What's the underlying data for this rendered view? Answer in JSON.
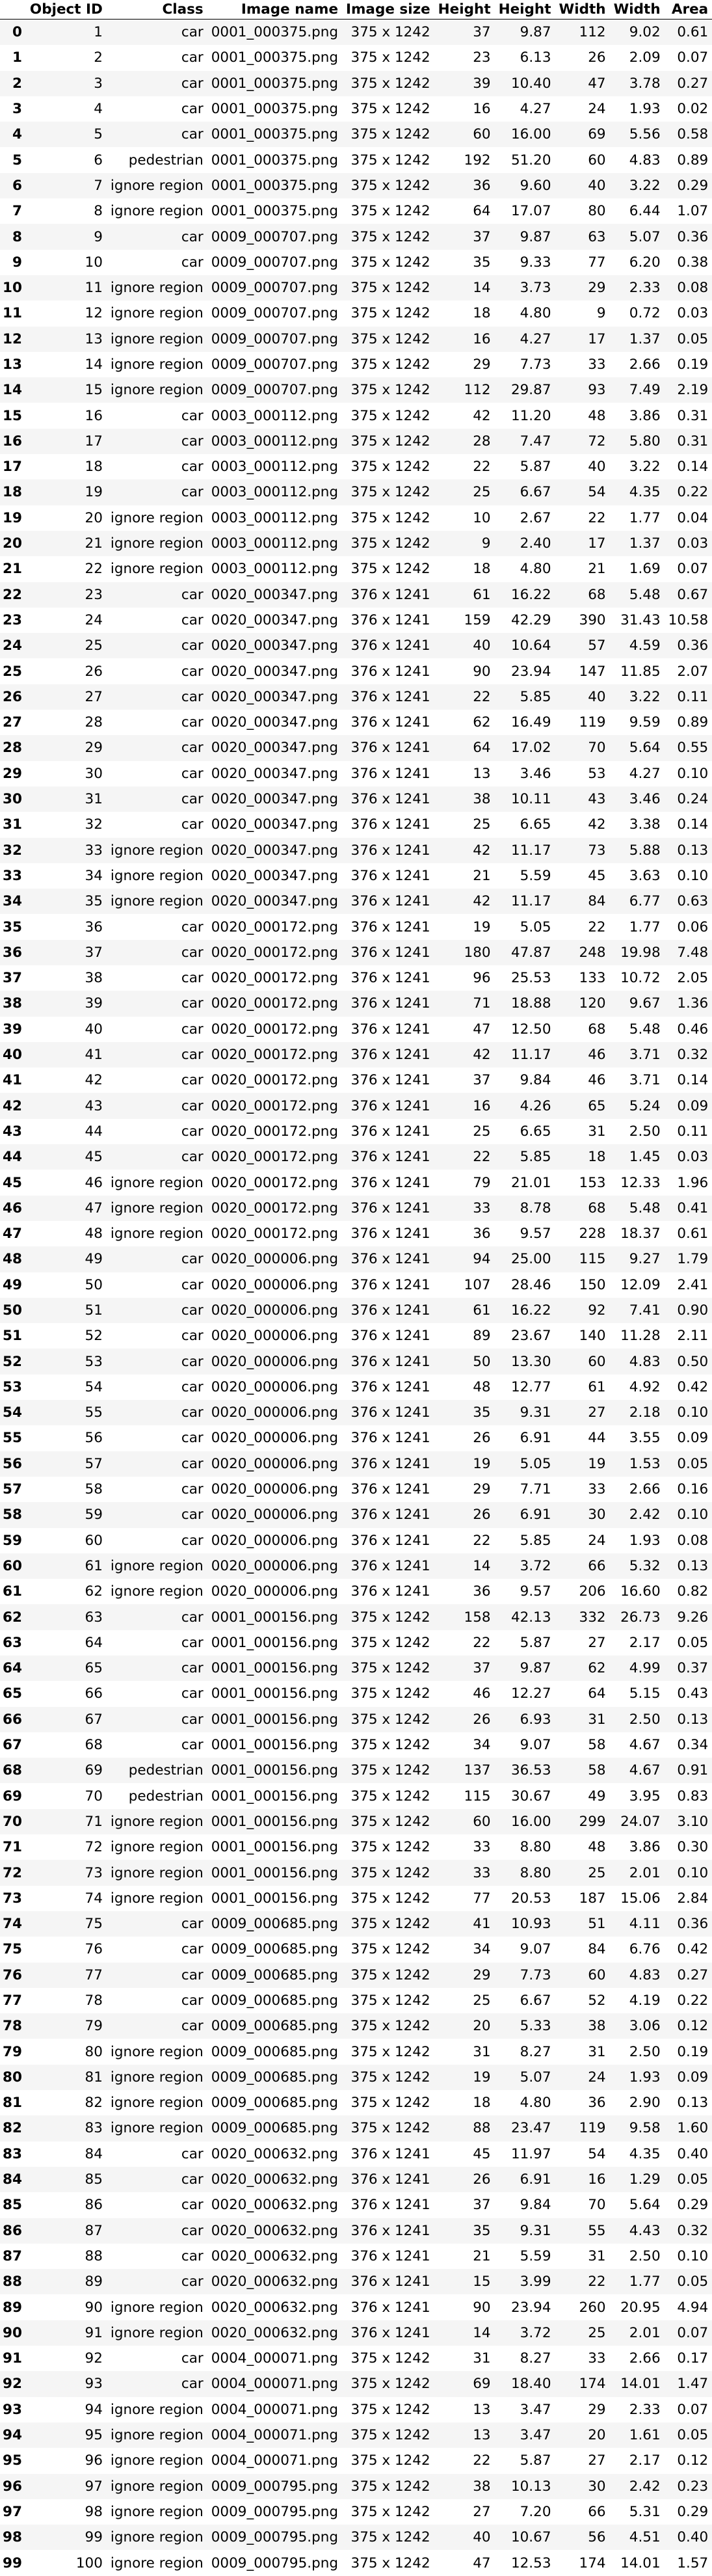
{
  "columns": [
    "",
    "Object ID",
    "Class",
    "Image name",
    "Image size",
    "Height",
    "Height",
    "Width",
    "Width",
    "Area"
  ],
  "rows": [
    [
      "0",
      "1",
      "car",
      "0001_000375.png",
      "375 x 1242",
      "37",
      "9.87",
      "112",
      "9.02",
      "0.61"
    ],
    [
      "1",
      "2",
      "car",
      "0001_000375.png",
      "375 x 1242",
      "23",
      "6.13",
      "26",
      "2.09",
      "0.07"
    ],
    [
      "2",
      "3",
      "car",
      "0001_000375.png",
      "375 x 1242",
      "39",
      "10.40",
      "47",
      "3.78",
      "0.27"
    ],
    [
      "3",
      "4",
      "car",
      "0001_000375.png",
      "375 x 1242",
      "16",
      "4.27",
      "24",
      "1.93",
      "0.02"
    ],
    [
      "4",
      "5",
      "car",
      "0001_000375.png",
      "375 x 1242",
      "60",
      "16.00",
      "69",
      "5.56",
      "0.58"
    ],
    [
      "5",
      "6",
      "pedestrian",
      "0001_000375.png",
      "375 x 1242",
      "192",
      "51.20",
      "60",
      "4.83",
      "0.89"
    ],
    [
      "6",
      "7",
      "ignore region",
      "0001_000375.png",
      "375 x 1242",
      "36",
      "9.60",
      "40",
      "3.22",
      "0.29"
    ],
    [
      "7",
      "8",
      "ignore region",
      "0001_000375.png",
      "375 x 1242",
      "64",
      "17.07",
      "80",
      "6.44",
      "1.07"
    ],
    [
      "8",
      "9",
      "car",
      "0009_000707.png",
      "375 x 1242",
      "37",
      "9.87",
      "63",
      "5.07",
      "0.36"
    ],
    [
      "9",
      "10",
      "car",
      "0009_000707.png",
      "375 x 1242",
      "35",
      "9.33",
      "77",
      "6.20",
      "0.38"
    ],
    [
      "10",
      "11",
      "ignore region",
      "0009_000707.png",
      "375 x 1242",
      "14",
      "3.73",
      "29",
      "2.33",
      "0.08"
    ],
    [
      "11",
      "12",
      "ignore region",
      "0009_000707.png",
      "375 x 1242",
      "18",
      "4.80",
      "9",
      "0.72",
      "0.03"
    ],
    [
      "12",
      "13",
      "ignore region",
      "0009_000707.png",
      "375 x 1242",
      "16",
      "4.27",
      "17",
      "1.37",
      "0.05"
    ],
    [
      "13",
      "14",
      "ignore region",
      "0009_000707.png",
      "375 x 1242",
      "29",
      "7.73",
      "33",
      "2.66",
      "0.19"
    ],
    [
      "14",
      "15",
      "ignore region",
      "0009_000707.png",
      "375 x 1242",
      "112",
      "29.87",
      "93",
      "7.49",
      "2.19"
    ],
    [
      "15",
      "16",
      "car",
      "0003_000112.png",
      "375 x 1242",
      "42",
      "11.20",
      "48",
      "3.86",
      "0.31"
    ],
    [
      "16",
      "17",
      "car",
      "0003_000112.png",
      "375 x 1242",
      "28",
      "7.47",
      "72",
      "5.80",
      "0.31"
    ],
    [
      "17",
      "18",
      "car",
      "0003_000112.png",
      "375 x 1242",
      "22",
      "5.87",
      "40",
      "3.22",
      "0.14"
    ],
    [
      "18",
      "19",
      "car",
      "0003_000112.png",
      "375 x 1242",
      "25",
      "6.67",
      "54",
      "4.35",
      "0.22"
    ],
    [
      "19",
      "20",
      "ignore region",
      "0003_000112.png",
      "375 x 1242",
      "10",
      "2.67",
      "22",
      "1.77",
      "0.04"
    ],
    [
      "20",
      "21",
      "ignore region",
      "0003_000112.png",
      "375 x 1242",
      "9",
      "2.40",
      "17",
      "1.37",
      "0.03"
    ],
    [
      "21",
      "22",
      "ignore region",
      "0003_000112.png",
      "375 x 1242",
      "18",
      "4.80",
      "21",
      "1.69",
      "0.07"
    ],
    [
      "22",
      "23",
      "car",
      "0020_000347.png",
      "376 x 1241",
      "61",
      "16.22",
      "68",
      "5.48",
      "0.67"
    ],
    [
      "23",
      "24",
      "car",
      "0020_000347.png",
      "376 x 1241",
      "159",
      "42.29",
      "390",
      "31.43",
      "10.58"
    ],
    [
      "24",
      "25",
      "car",
      "0020_000347.png",
      "376 x 1241",
      "40",
      "10.64",
      "57",
      "4.59",
      "0.36"
    ],
    [
      "25",
      "26",
      "car",
      "0020_000347.png",
      "376 x 1241",
      "90",
      "23.94",
      "147",
      "11.85",
      "2.07"
    ],
    [
      "26",
      "27",
      "car",
      "0020_000347.png",
      "376 x 1241",
      "22",
      "5.85",
      "40",
      "3.22",
      "0.11"
    ],
    [
      "27",
      "28",
      "car",
      "0020_000347.png",
      "376 x 1241",
      "62",
      "16.49",
      "119",
      "9.59",
      "0.89"
    ],
    [
      "28",
      "29",
      "car",
      "0020_000347.png",
      "376 x 1241",
      "64",
      "17.02",
      "70",
      "5.64",
      "0.55"
    ],
    [
      "29",
      "30",
      "car",
      "0020_000347.png",
      "376 x 1241",
      "13",
      "3.46",
      "53",
      "4.27",
      "0.10"
    ],
    [
      "30",
      "31",
      "car",
      "0020_000347.png",
      "376 x 1241",
      "38",
      "10.11",
      "43",
      "3.46",
      "0.24"
    ],
    [
      "31",
      "32",
      "car",
      "0020_000347.png",
      "376 x 1241",
      "25",
      "6.65",
      "42",
      "3.38",
      "0.14"
    ],
    [
      "32",
      "33",
      "ignore region",
      "0020_000347.png",
      "376 x 1241",
      "42",
      "11.17",
      "73",
      "5.88",
      "0.13"
    ],
    [
      "33",
      "34",
      "ignore region",
      "0020_000347.png",
      "376 x 1241",
      "21",
      "5.59",
      "45",
      "3.63",
      "0.10"
    ],
    [
      "34",
      "35",
      "ignore region",
      "0020_000347.png",
      "376 x 1241",
      "42",
      "11.17",
      "84",
      "6.77",
      "0.63"
    ],
    [
      "35",
      "36",
      "car",
      "0020_000172.png",
      "376 x 1241",
      "19",
      "5.05",
      "22",
      "1.77",
      "0.06"
    ],
    [
      "36",
      "37",
      "car",
      "0020_000172.png",
      "376 x 1241",
      "180",
      "47.87",
      "248",
      "19.98",
      "7.48"
    ],
    [
      "37",
      "38",
      "car",
      "0020_000172.png",
      "376 x 1241",
      "96",
      "25.53",
      "133",
      "10.72",
      "2.05"
    ],
    [
      "38",
      "39",
      "car",
      "0020_000172.png",
      "376 x 1241",
      "71",
      "18.88",
      "120",
      "9.67",
      "1.36"
    ],
    [
      "39",
      "40",
      "car",
      "0020_000172.png",
      "376 x 1241",
      "47",
      "12.50",
      "68",
      "5.48",
      "0.46"
    ],
    [
      "40",
      "41",
      "car",
      "0020_000172.png",
      "376 x 1241",
      "42",
      "11.17",
      "46",
      "3.71",
      "0.32"
    ],
    [
      "41",
      "42",
      "car",
      "0020_000172.png",
      "376 x 1241",
      "37",
      "9.84",
      "46",
      "3.71",
      "0.14"
    ],
    [
      "42",
      "43",
      "car",
      "0020_000172.png",
      "376 x 1241",
      "16",
      "4.26",
      "65",
      "5.24",
      "0.09"
    ],
    [
      "43",
      "44",
      "car",
      "0020_000172.png",
      "376 x 1241",
      "25",
      "6.65",
      "31",
      "2.50",
      "0.11"
    ],
    [
      "44",
      "45",
      "car",
      "0020_000172.png",
      "376 x 1241",
      "22",
      "5.85",
      "18",
      "1.45",
      "0.03"
    ],
    [
      "45",
      "46",
      "ignore region",
      "0020_000172.png",
      "376 x 1241",
      "79",
      "21.01",
      "153",
      "12.33",
      "1.96"
    ],
    [
      "46",
      "47",
      "ignore region",
      "0020_000172.png",
      "376 x 1241",
      "33",
      "8.78",
      "68",
      "5.48",
      "0.41"
    ],
    [
      "47",
      "48",
      "ignore region",
      "0020_000172.png",
      "376 x 1241",
      "36",
      "9.57",
      "228",
      "18.37",
      "0.61"
    ],
    [
      "48",
      "49",
      "car",
      "0020_000006.png",
      "376 x 1241",
      "94",
      "25.00",
      "115",
      "9.27",
      "1.79"
    ],
    [
      "49",
      "50",
      "car",
      "0020_000006.png",
      "376 x 1241",
      "107",
      "28.46",
      "150",
      "12.09",
      "2.41"
    ],
    [
      "50",
      "51",
      "car",
      "0020_000006.png",
      "376 x 1241",
      "61",
      "16.22",
      "92",
      "7.41",
      "0.90"
    ],
    [
      "51",
      "52",
      "car",
      "0020_000006.png",
      "376 x 1241",
      "89",
      "23.67",
      "140",
      "11.28",
      "2.11"
    ],
    [
      "52",
      "53",
      "car",
      "0020_000006.png",
      "376 x 1241",
      "50",
      "13.30",
      "60",
      "4.83",
      "0.50"
    ],
    [
      "53",
      "54",
      "car",
      "0020_000006.png",
      "376 x 1241",
      "48",
      "12.77",
      "61",
      "4.92",
      "0.42"
    ],
    [
      "54",
      "55",
      "car",
      "0020_000006.png",
      "376 x 1241",
      "35",
      "9.31",
      "27",
      "2.18",
      "0.10"
    ],
    [
      "55",
      "56",
      "car",
      "0020_000006.png",
      "376 x 1241",
      "26",
      "6.91",
      "44",
      "3.55",
      "0.09"
    ],
    [
      "56",
      "57",
      "car",
      "0020_000006.png",
      "376 x 1241",
      "19",
      "5.05",
      "19",
      "1.53",
      "0.05"
    ],
    [
      "57",
      "58",
      "car",
      "0020_000006.png",
      "376 x 1241",
      "29",
      "7.71",
      "33",
      "2.66",
      "0.16"
    ],
    [
      "58",
      "59",
      "car",
      "0020_000006.png",
      "376 x 1241",
      "26",
      "6.91",
      "30",
      "2.42",
      "0.10"
    ],
    [
      "59",
      "60",
      "car",
      "0020_000006.png",
      "376 x 1241",
      "22",
      "5.85",
      "24",
      "1.93",
      "0.08"
    ],
    [
      "60",
      "61",
      "ignore region",
      "0020_000006.png",
      "376 x 1241",
      "14",
      "3.72",
      "66",
      "5.32",
      "0.13"
    ],
    [
      "61",
      "62",
      "ignore region",
      "0020_000006.png",
      "376 x 1241",
      "36",
      "9.57",
      "206",
      "16.60",
      "0.82"
    ],
    [
      "62",
      "63",
      "car",
      "0001_000156.png",
      "375 x 1242",
      "158",
      "42.13",
      "332",
      "26.73",
      "9.26"
    ],
    [
      "63",
      "64",
      "car",
      "0001_000156.png",
      "375 x 1242",
      "22",
      "5.87",
      "27",
      "2.17",
      "0.05"
    ],
    [
      "64",
      "65",
      "car",
      "0001_000156.png",
      "375 x 1242",
      "37",
      "9.87",
      "62",
      "4.99",
      "0.37"
    ],
    [
      "65",
      "66",
      "car",
      "0001_000156.png",
      "375 x 1242",
      "46",
      "12.27",
      "64",
      "5.15",
      "0.43"
    ],
    [
      "66",
      "67",
      "car",
      "0001_000156.png",
      "375 x 1242",
      "26",
      "6.93",
      "31",
      "2.50",
      "0.13"
    ],
    [
      "67",
      "68",
      "car",
      "0001_000156.png",
      "375 x 1242",
      "34",
      "9.07",
      "58",
      "4.67",
      "0.34"
    ],
    [
      "68",
      "69",
      "pedestrian",
      "0001_000156.png",
      "375 x 1242",
      "137",
      "36.53",
      "58",
      "4.67",
      "0.91"
    ],
    [
      "69",
      "70",
      "pedestrian",
      "0001_000156.png",
      "375 x 1242",
      "115",
      "30.67",
      "49",
      "3.95",
      "0.83"
    ],
    [
      "70",
      "71",
      "ignore region",
      "0001_000156.png",
      "375 x 1242",
      "60",
      "16.00",
      "299",
      "24.07",
      "3.10"
    ],
    [
      "71",
      "72",
      "ignore region",
      "0001_000156.png",
      "375 x 1242",
      "33",
      "8.80",
      "48",
      "3.86",
      "0.30"
    ],
    [
      "72",
      "73",
      "ignore region",
      "0001_000156.png",
      "375 x 1242",
      "33",
      "8.80",
      "25",
      "2.01",
      "0.10"
    ],
    [
      "73",
      "74",
      "ignore region",
      "0001_000156.png",
      "375 x 1242",
      "77",
      "20.53",
      "187",
      "15.06",
      "2.84"
    ],
    [
      "74",
      "75",
      "car",
      "0009_000685.png",
      "375 x 1242",
      "41",
      "10.93",
      "51",
      "4.11",
      "0.36"
    ],
    [
      "75",
      "76",
      "car",
      "0009_000685.png",
      "375 x 1242",
      "34",
      "9.07",
      "84",
      "6.76",
      "0.42"
    ],
    [
      "76",
      "77",
      "car",
      "0009_000685.png",
      "375 x 1242",
      "29",
      "7.73",
      "60",
      "4.83",
      "0.27"
    ],
    [
      "77",
      "78",
      "car",
      "0009_000685.png",
      "375 x 1242",
      "25",
      "6.67",
      "52",
      "4.19",
      "0.22"
    ],
    [
      "78",
      "79",
      "car",
      "0009_000685.png",
      "375 x 1242",
      "20",
      "5.33",
      "38",
      "3.06",
      "0.12"
    ],
    [
      "79",
      "80",
      "ignore region",
      "0009_000685.png",
      "375 x 1242",
      "31",
      "8.27",
      "31",
      "2.50",
      "0.19"
    ],
    [
      "80",
      "81",
      "ignore region",
      "0009_000685.png",
      "375 x 1242",
      "19",
      "5.07",
      "24",
      "1.93",
      "0.09"
    ],
    [
      "81",
      "82",
      "ignore region",
      "0009_000685.png",
      "375 x 1242",
      "18",
      "4.80",
      "36",
      "2.90",
      "0.13"
    ],
    [
      "82",
      "83",
      "ignore region",
      "0009_000685.png",
      "375 x 1242",
      "88",
      "23.47",
      "119",
      "9.58",
      "1.60"
    ],
    [
      "83",
      "84",
      "car",
      "0020_000632.png",
      "376 x 1241",
      "45",
      "11.97",
      "54",
      "4.35",
      "0.40"
    ],
    [
      "84",
      "85",
      "car",
      "0020_000632.png",
      "376 x 1241",
      "26",
      "6.91",
      "16",
      "1.29",
      "0.05"
    ],
    [
      "85",
      "86",
      "car",
      "0020_000632.png",
      "376 x 1241",
      "37",
      "9.84",
      "70",
      "5.64",
      "0.29"
    ],
    [
      "86",
      "87",
      "car",
      "0020_000632.png",
      "376 x 1241",
      "35",
      "9.31",
      "55",
      "4.43",
      "0.32"
    ],
    [
      "87",
      "88",
      "car",
      "0020_000632.png",
      "376 x 1241",
      "21",
      "5.59",
      "31",
      "2.50",
      "0.10"
    ],
    [
      "88",
      "89",
      "car",
      "0020_000632.png",
      "376 x 1241",
      "15",
      "3.99",
      "22",
      "1.77",
      "0.05"
    ],
    [
      "89",
      "90",
      "ignore region",
      "0020_000632.png",
      "376 x 1241",
      "90",
      "23.94",
      "260",
      "20.95",
      "4.94"
    ],
    [
      "90",
      "91",
      "ignore region",
      "0020_000632.png",
      "376 x 1241",
      "14",
      "3.72",
      "25",
      "2.01",
      "0.07"
    ],
    [
      "91",
      "92",
      "car",
      "0004_000071.png",
      "375 x 1242",
      "31",
      "8.27",
      "33",
      "2.66",
      "0.17"
    ],
    [
      "92",
      "93",
      "car",
      "0004_000071.png",
      "375 x 1242",
      "69",
      "18.40",
      "174",
      "14.01",
      "1.47"
    ],
    [
      "93",
      "94",
      "ignore region",
      "0004_000071.png",
      "375 x 1242",
      "13",
      "3.47",
      "29",
      "2.33",
      "0.07"
    ],
    [
      "94",
      "95",
      "ignore region",
      "0004_000071.png",
      "375 x 1242",
      "13",
      "3.47",
      "20",
      "1.61",
      "0.05"
    ],
    [
      "95",
      "96",
      "ignore region",
      "0004_000071.png",
      "375 x 1242",
      "22",
      "5.87",
      "27",
      "2.17",
      "0.12"
    ],
    [
      "96",
      "97",
      "ignore region",
      "0009_000795.png",
      "375 x 1242",
      "38",
      "10.13",
      "30",
      "2.42",
      "0.23"
    ],
    [
      "97",
      "98",
      "ignore region",
      "0009_000795.png",
      "375 x 1242",
      "27",
      "7.20",
      "66",
      "5.31",
      "0.29"
    ],
    [
      "98",
      "99",
      "ignore region",
      "0009_000795.png",
      "375 x 1242",
      "40",
      "10.67",
      "56",
      "4.51",
      "0.40"
    ],
    [
      "99",
      "100",
      "ignore region",
      "0009_000795.png",
      "375 x 1242",
      "47",
      "12.53",
      "174",
      "14.01",
      "1.57"
    ]
  ]
}
